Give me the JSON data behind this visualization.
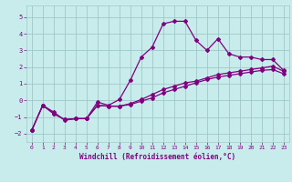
{
  "xlabel": "Windchill (Refroidissement éolien,°C)",
  "background_color": "#c8ecec",
  "grid_color": "#a0c8c8",
  "line_color": "#800080",
  "xlim": [
    -0.5,
    23.5
  ],
  "ylim": [
    -2.5,
    5.7
  ],
  "yticks": [
    -2,
    -1,
    0,
    1,
    2,
    3,
    4,
    5
  ],
  "xticks": [
    0,
    1,
    2,
    3,
    4,
    5,
    6,
    7,
    8,
    9,
    10,
    11,
    12,
    13,
    14,
    15,
    16,
    17,
    18,
    19,
    20,
    21,
    22,
    23
  ],
  "line1_x": [
    0,
    1,
    2,
    3,
    4,
    5,
    6,
    7,
    8,
    9,
    10,
    11,
    12,
    13,
    14,
    15,
    16,
    17,
    18,
    19,
    20,
    21,
    22,
    23
  ],
  "line1_y": [
    -1.8,
    -0.3,
    -0.7,
    -1.2,
    -1.1,
    -1.1,
    -0.1,
    -0.3,
    0.05,
    1.2,
    2.6,
    3.2,
    4.6,
    4.75,
    4.75,
    3.6,
    3.0,
    3.7,
    2.8,
    2.6,
    2.6,
    2.45,
    2.45,
    1.8
  ],
  "line2_x": [
    0,
    1,
    2,
    3,
    4,
    5,
    6,
    7,
    8,
    9,
    10,
    11,
    12,
    13,
    14,
    15,
    16,
    17,
    18,
    19,
    20,
    21,
    22,
    23
  ],
  "line2_y": [
    -1.8,
    -0.3,
    -0.8,
    -1.15,
    -1.1,
    -1.1,
    -0.3,
    -0.35,
    -0.35,
    -0.2,
    0.05,
    0.35,
    0.65,
    0.85,
    1.05,
    1.15,
    1.35,
    1.55,
    1.65,
    1.75,
    1.85,
    1.95,
    2.05,
    1.75
  ],
  "line3_x": [
    0,
    1,
    2,
    3,
    4,
    5,
    6,
    7,
    8,
    9,
    10,
    11,
    12,
    13,
    14,
    15,
    16,
    17,
    18,
    19,
    20,
    21,
    22,
    23
  ],
  "line3_y": [
    -1.8,
    -0.3,
    -0.8,
    -1.15,
    -1.1,
    -1.1,
    -0.3,
    -0.35,
    -0.35,
    -0.25,
    -0.05,
    0.15,
    0.45,
    0.65,
    0.85,
    1.05,
    1.25,
    1.4,
    1.5,
    1.6,
    1.7,
    1.8,
    1.85,
    1.6
  ]
}
